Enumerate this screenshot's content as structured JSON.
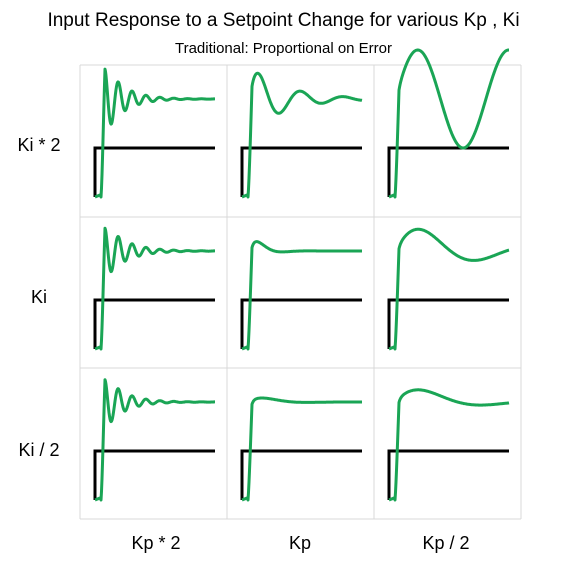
{
  "title": "Input Response to a Setpoint Change for various Kp , Ki",
  "subtitle": "Traditional: Proportional on Error",
  "chart_data": {
    "type": "line",
    "title": "Input Response to a Setpoint Change for various Kp , Ki",
    "subtitle": "Traditional: Proportional on Error",
    "row_labels": [
      "Ki * 2",
      "Ki",
      "Ki / 2"
    ],
    "col_labels": [
      "Kp * 2",
      "Kp",
      "Kp / 2"
    ],
    "grid": true,
    "colors": {
      "setpoint": "#000000",
      "response": "#1aa555",
      "grid": "#d9d9d9"
    },
    "series": [
      {
        "setpoint": 1,
        "overshoot": 0.9,
        "freq": 7.2,
        "decay": 0.55
      },
      {
        "setpoint": 1,
        "overshoot": 0.7,
        "freq": 2.35,
        "decay": 0.28
      },
      {
        "setpoint": 1,
        "overshoot": 1.0,
        "freq": 1.1,
        "decay": 0.0
      },
      {
        "setpoint": 1,
        "overshoot": 0.7,
        "freq": 7.2,
        "decay": 0.5
      },
      {
        "setpoint": 1,
        "overshoot": 0.5,
        "freq": 1.9,
        "decay": 0.9
      },
      {
        "setpoint": 1,
        "overshoot": 0.65,
        "freq": 0.9,
        "decay": 0.15
      },
      {
        "setpoint": 1,
        "overshoot": 0.7,
        "freq": 7.2,
        "decay": 0.55
      },
      {
        "setpoint": 1,
        "overshoot": 0.2,
        "freq": 1.1,
        "decay": 0.5
      },
      {
        "setpoint": 1,
        "overshoot": 0.45,
        "freq": 0.8,
        "decay": 0.22
      }
    ]
  }
}
